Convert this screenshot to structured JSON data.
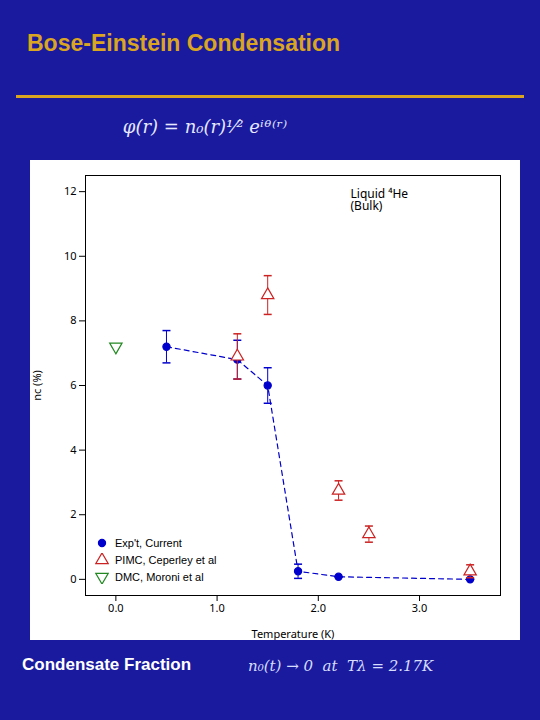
{
  "chart_data": {
    "type": "scatter",
    "title": "Bose-Einstein Condensation",
    "subtitle": "φ(r) = n₀(r)¹⁄² eⁱᶿ⁽ʳ⁾",
    "annotation": "Liquid ⁴He\n(Bulk)",
    "footer": [
      "Condensate Fraction",
      "n₀(t) → 0  at  Tλ = 2.17K"
    ],
    "xlabel": "Temperature (K)",
    "ylabel": "nc (%)",
    "xlim": [
      -0.3,
      3.8
    ],
    "ylim": [
      -0.5,
      12.5
    ],
    "xticks": [
      0,
      1,
      2,
      3
    ],
    "yticks": [
      0,
      2,
      4,
      6,
      8,
      10,
      12
    ],
    "grid": false,
    "legend": "lower left",
    "series": [
      {
        "name": "Exp't, Current",
        "color": "#0000cc",
        "marker": "circle",
        "line_style": "dashed",
        "x": [
          0.5,
          1.2,
          1.5,
          1.8,
          2.2,
          3.5
        ],
        "values": [
          7.2,
          6.8,
          6.0,
          0.25,
          0.08,
          0.0
        ],
        "yerr": [
          0.5,
          0.6,
          0.55,
          0.22,
          0.0,
          0.0
        ]
      },
      {
        "name": "PIMC, Ceperley et al",
        "color": "#cc2222",
        "marker": "triangle-up",
        "x": [
          1.2,
          1.5,
          2.2,
          2.5,
          3.5
        ],
        "values": [
          6.9,
          8.8,
          2.75,
          1.4,
          0.25
        ],
        "yerr": [
          0.7,
          0.6,
          0.3,
          0.25,
          0.2
        ]
      },
      {
        "name": "DMC, Moroni et al",
        "color": "#228822",
        "marker": "triangle-down",
        "x": [
          0.0
        ],
        "values": [
          7.2
        ],
        "yerr": [
          0.0
        ]
      }
    ]
  }
}
